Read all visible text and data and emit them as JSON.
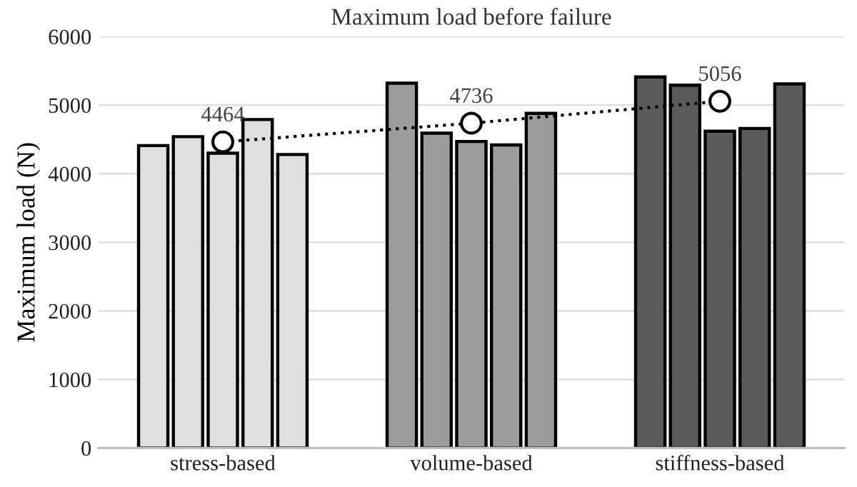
{
  "chart_data": {
    "type": "bar",
    "title": "Maximum load before failure",
    "ylabel": "Maximum load (N)",
    "categories": [
      "stress-based",
      "volume-based",
      "stiffness-based"
    ],
    "series": [
      {
        "colors": [
          "#dedede",
          "#9c9c9c",
          "#5a5a5a"
        ],
        "values": [
          4410,
          5320,
          5410
        ]
      },
      {
        "colors": [
          "#dedede",
          "#9c9c9c",
          "#5a5a5a"
        ],
        "values": [
          4540,
          4590,
          5290
        ]
      },
      {
        "colors": [
          "#dedede",
          "#9c9c9c",
          "#5a5a5a"
        ],
        "values": [
          4300,
          4470,
          4620
        ]
      },
      {
        "colors": [
          "#dedede",
          "#9c9c9c",
          "#5a5a5a"
        ],
        "values": [
          4790,
          4420,
          4660
        ]
      },
      {
        "colors": [
          "#dedede",
          "#9c9c9c",
          "#5a5a5a"
        ],
        "values": [
          4280,
          4880,
          5310
        ]
      },
      {
        "type": "line",
        "x": [
          "stress-based",
          "volume-based",
          "stiffness-based"
        ],
        "values": [
          4464,
          4736,
          5056
        ],
        "color": "#000000",
        "marker": "circle",
        "line_style": "dotted",
        "value_labels": [
          "4464",
          "4736",
          "5056"
        ]
      }
    ],
    "ylim": [
      0,
      6000
    ],
    "yticks": [
      0,
      1000,
      2000,
      3000,
      4000,
      5000,
      6000
    ],
    "grid": "y",
    "legend": false
  }
}
